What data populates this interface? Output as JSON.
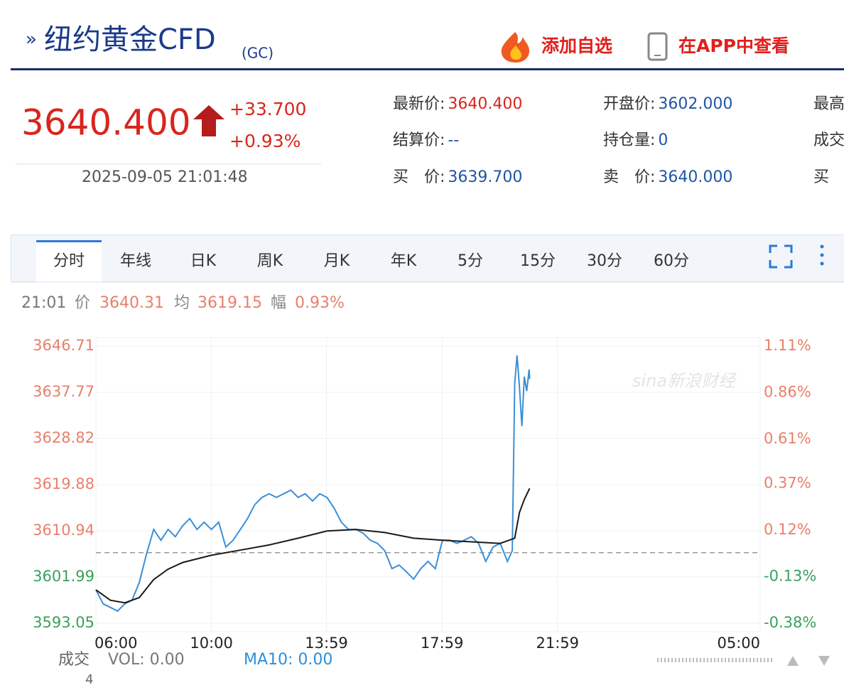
{
  "header": {
    "title": "纽约黄金CFD",
    "code": "(GC)",
    "actions": [
      "添加自选",
      "在APP中查看"
    ]
  },
  "quote": {
    "price": "3640.400",
    "change": "+33.700",
    "change_pct": "+0.93%",
    "time": "2025-09-05 21:01:48"
  },
  "fields": [
    [
      {
        "label": "最新价:",
        "value": "3640.400"
      },
      {
        "label": "开盘价:",
        "value": "3602.000"
      },
      {
        "label": "最高"
      }
    ],
    [
      {
        "label": "结算价:",
        "value": "--"
      },
      {
        "label": "持仓量:",
        "value": "0"
      },
      {
        "label": "成交"
      }
    ],
    [
      {
        "label": "买　价:",
        "value": "3639.700"
      },
      {
        "label": "卖　价:",
        "value": "3640.000"
      },
      {
        "label": "买"
      }
    ]
  ],
  "tabs": [
    "分时",
    "年线",
    "日K",
    "周K",
    "月K",
    "年K",
    "5分",
    "15分",
    "30分",
    "60分"
  ],
  "active_tab": 0,
  "info": {
    "time": "21:01",
    "price_label": "价",
    "price": "3640.31",
    "avg_label": "均",
    "avg": "3619.15",
    "amp_label": "幅",
    "amp": "0.93%"
  },
  "chart_data": {
    "type": "line",
    "xlim": [
      "06:00",
      "05:00"
    ],
    "xticks": [
      "06:00",
      "10:00",
      "13:59",
      "17:59",
      "21:59",
      "05:00"
    ],
    "ylim": [
      3593.05,
      3646.71
    ],
    "yticks": [
      3593.05,
      3601.99,
      3610.94,
      3619.88,
      3628.82,
      3637.77,
      3646.71
    ],
    "y2lim": [
      -0.38,
      1.11
    ],
    "y2ticks": [
      {
        "value": -0.38,
        "label": "-0.38%"
      },
      {
        "value": -0.13,
        "label": "-0.13%"
      },
      {
        "value": 0.12,
        "label": "0.12%"
      },
      {
        "value": 0.37,
        "label": "0.37%"
      },
      {
        "value": 0.61,
        "label": "0.61%"
      },
      {
        "value": 0.86,
        "label": "0.86%"
      },
      {
        "value": 1.11,
        "label": "1.11%"
      }
    ],
    "baseline": 3606.7,
    "grid": true,
    "series": [
      {
        "name": "价",
        "color": "#3b8fd6",
        "x": [
          "06:00",
          "06:15",
          "06:30",
          "06:45",
          "07:00",
          "07:15",
          "07:30",
          "07:45",
          "08:00",
          "08:15",
          "08:30",
          "08:45",
          "09:00",
          "09:15",
          "09:30",
          "09:45",
          "10:00",
          "10:15",
          "10:30",
          "10:45",
          "11:00",
          "11:15",
          "11:30",
          "11:45",
          "12:00",
          "12:15",
          "12:30",
          "12:45",
          "13:00",
          "13:15",
          "13:30",
          "13:45",
          "14:00",
          "14:15",
          "14:30",
          "14:45",
          "15:00",
          "15:15",
          "15:30",
          "15:45",
          "16:00",
          "16:15",
          "16:30",
          "16:45",
          "17:00",
          "17:15",
          "17:30",
          "17:45",
          "18:00",
          "18:15",
          "18:30",
          "18:45",
          "19:00",
          "19:15",
          "19:30",
          "19:45",
          "20:00",
          "20:15",
          "20:25",
          "20:30",
          "20:35",
          "20:40",
          "20:45",
          "20:50",
          "20:55",
          "21:00",
          "21:01"
        ],
        "values": [
          3599.5,
          3596.8,
          3596.1,
          3595.4,
          3596.8,
          3597.5,
          3600.9,
          3606.4,
          3611.2,
          3609.1,
          3611.2,
          3609.8,
          3611.9,
          3613.3,
          3611.2,
          3612.6,
          3611.2,
          3612.6,
          3607.8,
          3609.1,
          3611.2,
          3613.3,
          3616.0,
          3617.4,
          3618.1,
          3617.4,
          3618.1,
          3618.8,
          3617.4,
          3618.1,
          3616.7,
          3618.1,
          3617.4,
          3615.3,
          3612.6,
          3611.2,
          3611.2,
          3610.5,
          3609.1,
          3608.5,
          3607.1,
          3603.6,
          3604.3,
          3603.0,
          3601.6,
          3603.6,
          3605.0,
          3603.6,
          3609.1,
          3609.1,
          3608.5,
          3609.1,
          3609.8,
          3608.5,
          3605.0,
          3607.8,
          3608.5,
          3605.0,
          3607.1,
          3639.4,
          3644.9,
          3638.7,
          3631.2,
          3640.8,
          3638.0,
          3642.2,
          3640.31
        ]
      },
      {
        "name": "均",
        "color": "#1a1a1a",
        "x": [
          "06:00",
          "06:30",
          "07:00",
          "07:30",
          "08:00",
          "08:30",
          "09:00",
          "09:30",
          "10:00",
          "11:00",
          "12:00",
          "13:00",
          "14:00",
          "15:00",
          "16:00",
          "17:00",
          "18:00",
          "19:00",
          "20:00",
          "20:30",
          "20:40",
          "20:50",
          "21:01"
        ],
        "values": [
          3599.5,
          3597.5,
          3597.0,
          3598.0,
          3601.5,
          3603.5,
          3604.8,
          3605.5,
          3606.2,
          3607.2,
          3608.2,
          3609.5,
          3610.9,
          3611.2,
          3610.6,
          3609.5,
          3609.1,
          3608.8,
          3608.5,
          3609.5,
          3614.5,
          3617.0,
          3619.15
        ]
      }
    ]
  },
  "volume": {
    "label": "成交",
    "vol": "VOL: 0.00",
    "ma10": "MA10: 0.00",
    "axis_label": "4"
  },
  "watermark": "sina新浪财经"
}
